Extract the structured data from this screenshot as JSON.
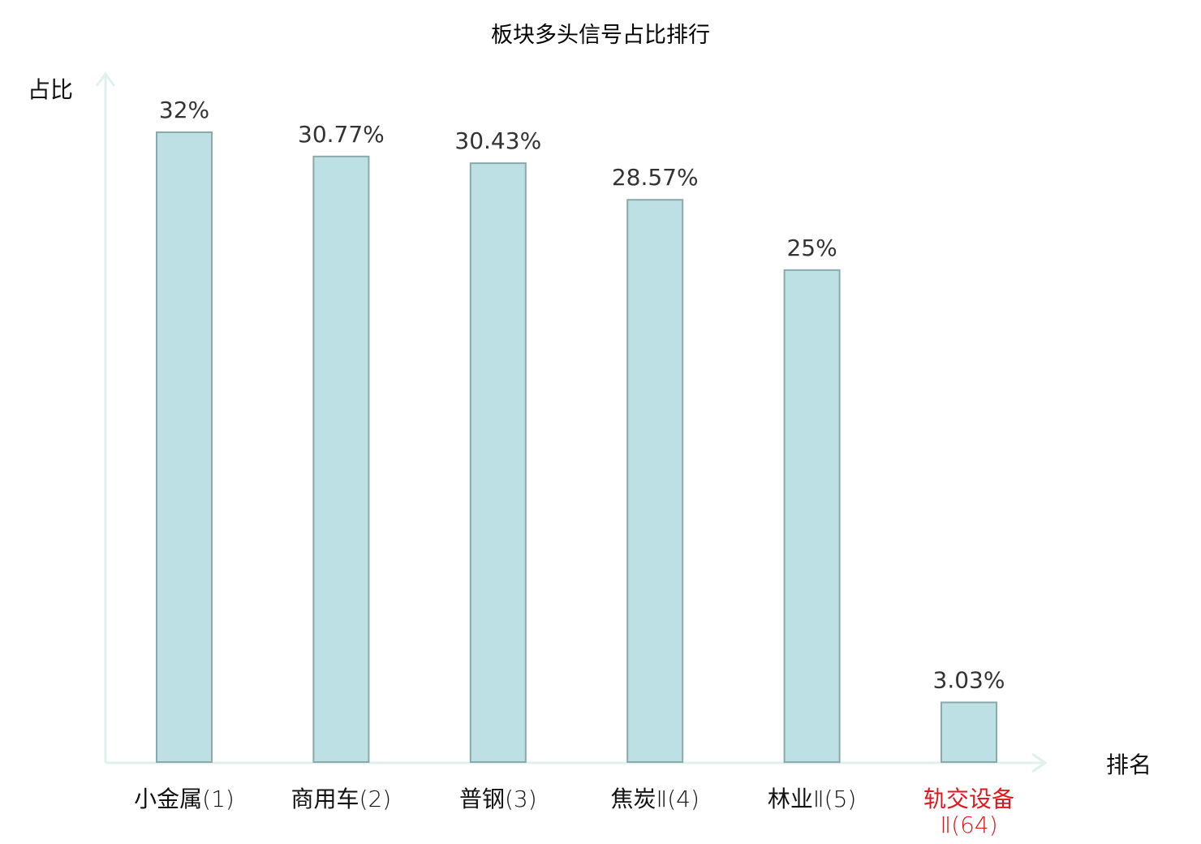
{
  "chart_data": {
    "type": "bar",
    "title": "板块多头信号占比排行",
    "ylabel": "占比",
    "xlabel": "排名",
    "ylim": [
      0,
      35
    ],
    "categories": [
      {
        "name": "小金属",
        "rank": "(1)",
        "highlight": false
      },
      {
        "name": "商用车",
        "rank": "(2)",
        "highlight": false
      },
      {
        "name": "普钢",
        "rank": "(3)",
        "highlight": false
      },
      {
        "name": "焦炭",
        "rank": "Ⅱ(4)",
        "highlight": false
      },
      {
        "name": "林业",
        "rank": "Ⅱ(5)",
        "highlight": false
      },
      {
        "name": "轨交设备",
        "rank": "Ⅱ(64)",
        "highlight": true
      }
    ],
    "values": [
      32,
      30.77,
      30.43,
      28.57,
      25,
      3.03
    ],
    "value_labels": [
      "32%",
      "30.77%",
      "30.43%",
      "28.57%",
      "25%",
      "3.03%"
    ],
    "grid": false,
    "legend": "none",
    "colors": {
      "bar_fill": "#bce0e3",
      "bar_stroke": "#8aa9ab",
      "axis": "#dff0ee",
      "highlight_text": "#e0181c",
      "label_text": "#111111",
      "value_text": "#333333"
    }
  }
}
